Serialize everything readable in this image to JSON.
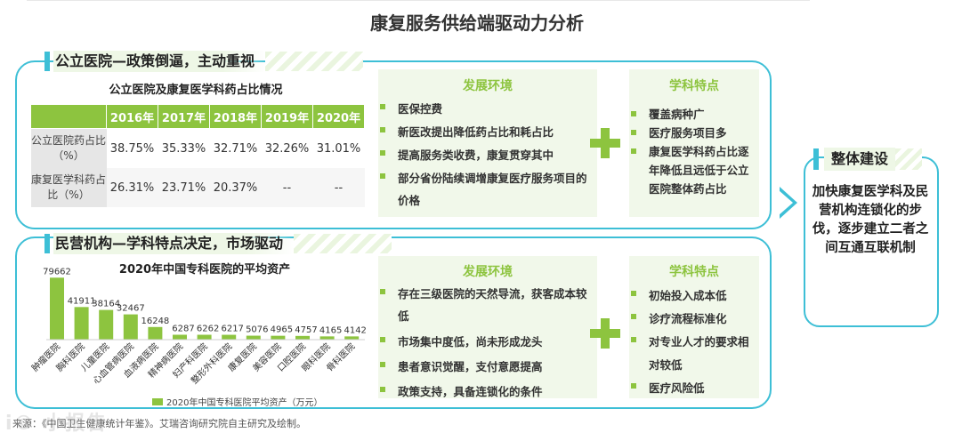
{
  "page_title": "康复服务供给端驱动力分析",
  "public_section": {
    "heading": "公立医院—政策倒逼，主动重视",
    "table_title": "公立医院及康复医学科药占比情况",
    "years": [
      "2016年",
      "2017年",
      "2018年",
      "2019年",
      "2020年"
    ],
    "rows": [
      {
        "label": "公立医院药占比（%）",
        "values": [
          "38.75%",
          "35.33%",
          "32.71%",
          "32.26%",
          "31.01%"
        ]
      },
      {
        "label": "康复医学科药占比（%）",
        "values": [
          "26.31%",
          "23.71%",
          "20.37%",
          "--",
          "--"
        ]
      }
    ],
    "env_title": "发展环境",
    "env_items": [
      "医保控费",
      "新医改提出降低药占比和耗占比",
      "提高服务类收费，康复贯穿其中",
      "部分省份陆续调增康复医疗服务项目的价格"
    ],
    "feat_title": "学科特点",
    "feat_items": [
      "覆盖病种广",
      "医疗服务项目多",
      "康复医学科药占比逐年降低且远低于公立医院整体药占比"
    ]
  },
  "private_section": {
    "heading": "民营机构—学科特点决定，市场驱动",
    "chart_title": "2020年中国专科医院的平均资产",
    "legend": "2020年中国专科医院平均资产（万元）",
    "env_title": "发展环境",
    "env_items": [
      "存在三级医院的天然导流，获客成本较低",
      "市场集中度低，尚未形成龙头",
      "患者意识觉醒，支付意愿提高",
      "政策支持，具备连锁化的条件"
    ],
    "feat_title": "学科特点",
    "feat_items": [
      "初始投入成本低",
      "诊疗流程标准化",
      "对专业人才的要求相对较低",
      "医疗风险低"
    ]
  },
  "overall": {
    "heading": "整体建设",
    "body": "加快康复医学科及民营机构连锁化的步伐，逐步建立二者之间互通互联机制"
  },
  "source": "来源：《中国卫生健康统计年鉴》。艾瑞咨询研究院自主研究及绘制。",
  "watermark": "i© 小报告",
  "colors": {
    "accent": "#3dbfd6",
    "green": "#8dc43f",
    "light_green_bg": "#f1f8ea"
  },
  "chart_data": {
    "type": "bar",
    "title": "2020年中国专科医院的平均资产",
    "categories": [
      "肿瘤医院",
      "胸科医院",
      "儿童医院",
      "心血管病医院",
      "血液病医院",
      "精神病医院",
      "妇产科医院",
      "整形外科医院",
      "康复医院",
      "美容医院",
      "口腔医院",
      "眼科医院",
      "骨科医院"
    ],
    "series": [
      {
        "name": "2020年中国专科医院平均资产（万元）",
        "values": [
          79662,
          41911,
          38164,
          32467,
          16248,
          6287,
          6262,
          6217,
          5076,
          4965,
          4757,
          4165,
          4142
        ]
      }
    ],
    "data_labels": [
      "79662",
      "41911",
      "38164",
      "32467",
      "16248",
      "6287",
      "6262",
      "6217",
      "5076",
      "4965",
      "4757",
      "4165",
      "4142"
    ],
    "ylim": [
      0,
      80000
    ],
    "legend_position": "bottom"
  }
}
